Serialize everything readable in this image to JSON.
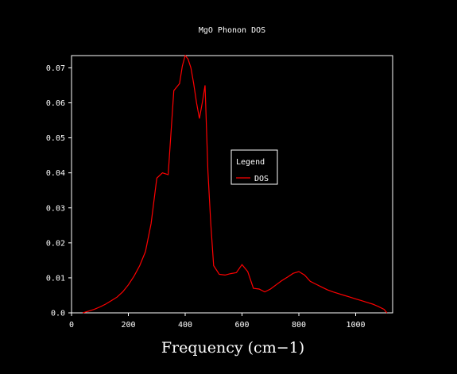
{
  "chart_data": {
    "type": "line",
    "title": "MgO Phonon DOS",
    "xlabel": "Frequency (cm−1)",
    "ylabel": "",
    "xlim": [
      0,
      1130
    ],
    "ylim": [
      0,
      0.0735
    ],
    "xticks": [
      0,
      200,
      400,
      600,
      800,
      1000
    ],
    "yticks": [
      0.0,
      0.01,
      0.02,
      0.03,
      0.04,
      0.05,
      0.06,
      0.07
    ],
    "ytick_labels": [
      "0.0",
      "0.01",
      "0.02",
      "0.03",
      "0.04",
      "0.05",
      "0.06",
      "0.07"
    ],
    "grid": false,
    "legend": {
      "title": "Legend",
      "placement": "center-right"
    },
    "series": [
      {
        "name": "DOS",
        "color": "#ff0000",
        "x": [
          40,
          60,
          80,
          100,
          120,
          140,
          160,
          180,
          200,
          220,
          240,
          260,
          280,
          300,
          320,
          340,
          360,
          380,
          390,
          400,
          410,
          420,
          430,
          440,
          450,
          460,
          470,
          480,
          490,
          500,
          520,
          540,
          560,
          580,
          600,
          620,
          640,
          660,
          680,
          700,
          720,
          740,
          760,
          780,
          800,
          820,
          840,
          860,
          880,
          900,
          920,
          940,
          960,
          980,
          1000,
          1020,
          1040,
          1060,
          1080,
          1100,
          1110
        ],
        "y": [
          0.0,
          0.0005,
          0.001,
          0.0017,
          0.0025,
          0.0035,
          0.0045,
          0.006,
          0.008,
          0.0105,
          0.0135,
          0.0175,
          0.0255,
          0.0385,
          0.04,
          0.0395,
          0.0635,
          0.0655,
          0.0705,
          0.0735,
          0.0725,
          0.07,
          0.0655,
          0.06,
          0.0555,
          0.06,
          0.065,
          0.0405,
          0.0255,
          0.0135,
          0.011,
          0.0108,
          0.0112,
          0.0115,
          0.0138,
          0.0118,
          0.007,
          0.0068,
          0.006,
          0.0068,
          0.008,
          0.0092,
          0.0102,
          0.0113,
          0.0118,
          0.0108,
          0.009,
          0.0082,
          0.0074,
          0.0066,
          0.006,
          0.0055,
          0.005,
          0.0045,
          0.004,
          0.0035,
          0.003,
          0.0025,
          0.0018,
          0.001,
          0.0
        ]
      }
    ]
  }
}
